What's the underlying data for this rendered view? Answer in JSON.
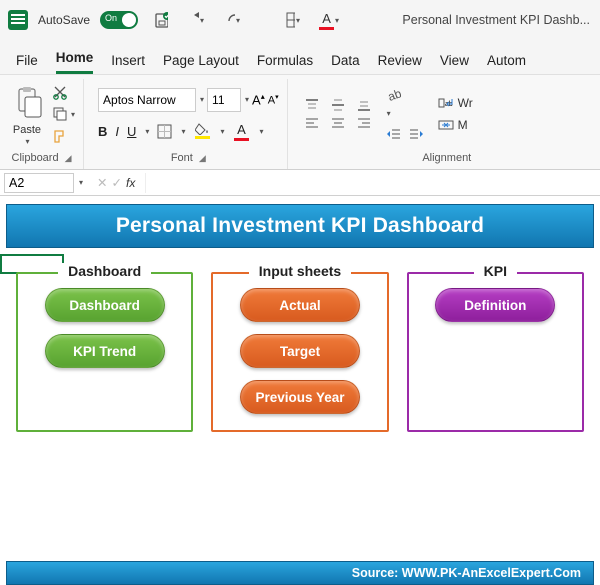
{
  "titlebar": {
    "autosave_label": "AutoSave",
    "autosave_state": "On",
    "app_title": "Personal Investment KPI Dashb..."
  },
  "tabs": {
    "items": [
      "File",
      "Home",
      "Insert",
      "Page Layout",
      "Formulas",
      "Data",
      "Review",
      "View",
      "Autom"
    ],
    "active_index": 1
  },
  "ribbon": {
    "clipboard_label": "Clipboard",
    "paste_label": "Paste",
    "font_label": "Font",
    "font_name": "Aptos Narrow",
    "font_size": "11",
    "alignment_label": "Alignment",
    "wrap_label": "Wr",
    "merge_label": "M"
  },
  "namebox": {
    "cell_ref": "A2",
    "fx_label": "fx"
  },
  "dashboard": {
    "banner_title": "Personal Investment KPI Dashboard",
    "footer_text": "Source: WWW.PK-AnExcelExpert.Com",
    "cards": [
      {
        "title": "Dashboard",
        "border_color": "#5fb03a",
        "pills": [
          {
            "label": "Dashboard",
            "bg": "linear-gradient(#7bc24a,#58a330)"
          },
          {
            "label": "KPI Trend",
            "bg": "linear-gradient(#7bc24a,#58a330)"
          }
        ]
      },
      {
        "title": "Input sheets",
        "border_color": "#e46a2a",
        "pills": [
          {
            "label": "Actual",
            "bg": "linear-gradient(#f07a39,#d85b1f)"
          },
          {
            "label": "Target",
            "bg": "linear-gradient(#f07a39,#d85b1f)"
          },
          {
            "label": "Previous Year",
            "bg": "linear-gradient(#f07a39,#d85b1f)"
          }
        ]
      },
      {
        "title": "KPI",
        "border_color": "#9b2aa8",
        "pills": [
          {
            "label": "Definition",
            "bg": "linear-gradient(#b63fc4,#8e1f9c)"
          }
        ]
      }
    ]
  },
  "colors": {
    "fill_accent": "#ffe600",
    "font_accent": "#e81123",
    "excel_green": "#107c41"
  }
}
